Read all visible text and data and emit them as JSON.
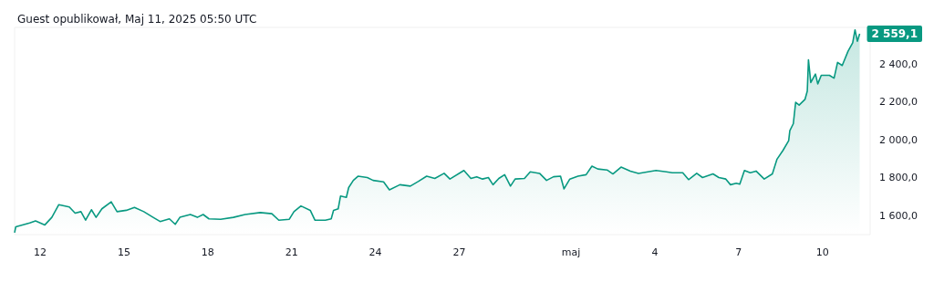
{
  "chart_data": {
    "type": "area",
    "title": "Guest opublikował, Maj 11, 2025 05:50 UTC",
    "xlim": [
      "2025-04-11T02:00",
      "2025-05-11T17:00"
    ],
    "xticks": [
      {
        "value": "2025-04-12",
        "label": "12"
      },
      {
        "value": "2025-04-15",
        "label": "15"
      },
      {
        "value": "2025-04-18",
        "label": "18"
      },
      {
        "value": "2025-04-21",
        "label": "21"
      },
      {
        "value": "2025-04-24",
        "label": "24"
      },
      {
        "value": "2025-04-27",
        "label": "27"
      },
      {
        "value": "2025-05-01",
        "label": "maj"
      },
      {
        "value": "2025-05-04",
        "label": "4"
      },
      {
        "value": "2025-05-07",
        "label": "7"
      },
      {
        "value": "2025-05-10",
        "label": "10"
      }
    ],
    "ylim": [
      1500,
      2593
    ],
    "yticks": [
      {
        "value": 1600,
        "label": "1 600,0"
      },
      {
        "value": 1800,
        "label": "1 800,0"
      },
      {
        "value": 2000,
        "label": "2 000,0"
      },
      {
        "value": 2200,
        "label": "2 200,0"
      },
      {
        "value": 2400,
        "label": "2 400,0"
      }
    ],
    "x": [
      "2025-04-11T02:00",
      "2025-04-11T03:00",
      "2025-04-11T15:00",
      "2025-04-11T20:00",
      "2025-04-12T04:00",
      "2025-04-12T10:00",
      "2025-04-12T16:00",
      "2025-04-13T01:00",
      "2025-04-13T06:00",
      "2025-04-13T11:00",
      "2025-04-13T15:00",
      "2025-04-13T20:00",
      "2025-04-14T00:00",
      "2025-04-14T05:00",
      "2025-04-14T13:00",
      "2025-04-14T18:00",
      "2025-04-15T02:00",
      "2025-04-15T09:00",
      "2025-04-15T17:00",
      "2025-04-16T01:00",
      "2025-04-16T07:00",
      "2025-04-16T15:00",
      "2025-04-16T20:00",
      "2025-04-17T00:00",
      "2025-04-17T09:00",
      "2025-04-17T15:00",
      "2025-04-17T20:00",
      "2025-04-18T01:00",
      "2025-04-18T11:00",
      "2025-04-18T22:00",
      "2025-04-19T08:00",
      "2025-04-19T21:00",
      "2025-04-20T07:00",
      "2025-04-20T13:00",
      "2025-04-20T22:00",
      "2025-04-21T02:00",
      "2025-04-21T08:00",
      "2025-04-21T16:00",
      "2025-04-21T20:00",
      "2025-04-22T05:00",
      "2025-04-22T10:00",
      "2025-04-22T12:00",
      "2025-04-22T16:00",
      "2025-04-22T18:00",
      "2025-04-22T23:00",
      "2025-04-23T01:00",
      "2025-04-23T05:00",
      "2025-04-23T09:00",
      "2025-04-23T17:00",
      "2025-04-23T22:00",
      "2025-04-24T07:00",
      "2025-04-24T12:00",
      "2025-04-24T21:00",
      "2025-04-25T06:00",
      "2025-04-25T13:00",
      "2025-04-25T20:00",
      "2025-04-26T03:00",
      "2025-04-26T11:00",
      "2025-04-26T16:00",
      "2025-04-27T04:00",
      "2025-04-27T10:00",
      "2025-04-27T15:00",
      "2025-04-27T20:00",
      "2025-04-28T01:00",
      "2025-04-28T05:00",
      "2025-04-28T10:00",
      "2025-04-28T15:00",
      "2025-04-28T20:00",
      "2025-04-29T00:00",
      "2025-04-29T08:00",
      "2025-04-29T13:00",
      "2025-04-29T21:00",
      "2025-04-30T03:00",
      "2025-04-30T09:00",
      "2025-04-30T15:00",
      "2025-04-30T18:00",
      "2025-04-30T23:00",
      "2025-05-01T06:00",
      "2025-05-01T13:00",
      "2025-05-01T18:00",
      "2025-05-01T23:00",
      "2025-05-02T07:00",
      "2025-05-02T12:00",
      "2025-05-02T19:00",
      "2025-05-03T03:00",
      "2025-05-03T10:00",
      "2025-05-03T18:00",
      "2025-05-04T01:00",
      "2025-05-04T10:00",
      "2025-05-04T15:00",
      "2025-05-05T00:00",
      "2025-05-05T05:00",
      "2025-05-05T12:00",
      "2025-05-05T17:00",
      "2025-05-06T02:00",
      "2025-05-06T07:00",
      "2025-05-06T13:00",
      "2025-05-06T17:00",
      "2025-05-06T22:00",
      "2025-05-07T01:00",
      "2025-05-07T05:00",
      "2025-05-07T10:00",
      "2025-05-07T15:00",
      "2025-05-07T22:00",
      "2025-05-08T05:00",
      "2025-05-08T09:00",
      "2025-05-08T14:00",
      "2025-05-08T19:00",
      "2025-05-08T20:00",
      "2025-05-08T23:00",
      "2025-05-09T01:00",
      "2025-05-09T04:00",
      "2025-05-09T09:00",
      "2025-05-09T11:00",
      "2025-05-09T12:00",
      "2025-05-09T14:00",
      "2025-05-09T18:00",
      "2025-05-09T20:00",
      "2025-05-09T23:00",
      "2025-05-10T06:00",
      "2025-05-10T10:00",
      "2025-05-10T13:00",
      "2025-05-10T17:00",
      "2025-05-10T22:00",
      "2025-05-11T02:00",
      "2025-05-11T04:00",
      "2025-05-11T06:00",
      "2025-05-11T08:00"
    ],
    "series": [
      {
        "color": "#089981",
        "values": [
          1510,
          1541,
          1561,
          1572,
          1551,
          1591,
          1658,
          1646,
          1613,
          1621,
          1576,
          1631,
          1591,
          1636,
          1673,
          1621,
          1628,
          1643,
          1621,
          1591,
          1569,
          1583,
          1554,
          1591,
          1606,
          1591,
          1606,
          1583,
          1581,
          1591,
          1606,
          1616,
          1610,
          1576,
          1581,
          1621,
          1651,
          1628,
          1576,
          1576,
          1583,
          1628,
          1636,
          1703,
          1696,
          1748,
          1786,
          1808,
          1801,
          1786,
          1778,
          1736,
          1763,
          1756,
          1781,
          1808,
          1796,
          1823,
          1793,
          1838,
          1796,
          1805,
          1793,
          1801,
          1763,
          1796,
          1816,
          1756,
          1793,
          1796,
          1831,
          1823,
          1786,
          1805,
          1808,
          1741,
          1793,
          1808,
          1816,
          1861,
          1846,
          1841,
          1820,
          1856,
          1835,
          1823,
          1831,
          1838,
          1831,
          1826,
          1826,
          1790,
          1823,
          1801,
          1820,
          1801,
          1793,
          1763,
          1771,
          1766,
          1838,
          1826,
          1835,
          1793,
          1820,
          1898,
          1943,
          1995,
          2048,
          2085,
          2198,
          2183,
          2213,
          2257,
          2422,
          2302,
          2347,
          2295,
          2340,
          2340,
          2325,
          2408,
          2392,
          2467,
          2512,
          2580,
          2520,
          2559.1
        ],
        "value_labels": [
          null,
          null,
          null,
          null,
          null,
          null,
          null,
          null,
          null,
          null,
          null,
          null,
          null,
          null,
          null,
          null,
          null,
          null,
          null,
          null,
          null,
          null,
          null,
          null,
          null,
          null,
          null,
          null,
          null,
          null,
          null,
          null,
          null,
          null,
          null,
          null,
          null,
          null,
          null,
          null,
          null,
          null,
          null,
          null,
          null,
          null,
          null,
          null,
          null,
          null,
          null,
          null,
          null,
          null,
          null,
          null,
          null,
          null,
          null,
          null,
          null,
          null,
          null,
          null,
          null,
          null,
          null,
          null,
          null,
          null,
          null,
          null,
          null,
          null,
          null,
          null,
          null,
          null,
          null,
          null,
          null,
          null,
          null,
          null,
          null,
          null,
          null,
          null,
          null,
          null,
          null,
          null,
          null,
          null,
          null,
          null,
          null,
          null,
          null,
          null,
          null,
          null,
          null,
          null,
          null,
          null,
          null,
          null,
          null,
          null,
          null,
          null,
          null,
          null,
          null,
          null,
          null,
          null,
          null,
          null,
          null,
          null,
          null,
          null,
          null,
          null,
          null,
          "2 559,1"
        ]
      }
    ]
  }
}
